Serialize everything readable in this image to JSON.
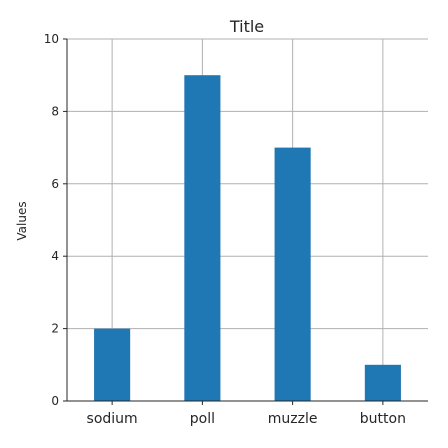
{
  "chart_data": {
    "type": "bar",
    "title": "Title",
    "xlabel": "",
    "ylabel": "Values",
    "categories": [
      "sodium",
      "poll",
      "muzzle",
      "button"
    ],
    "values": [
      2,
      9,
      7,
      1
    ],
    "ylim": [
      0,
      10
    ],
    "yticks": [
      0,
      2,
      4,
      6,
      8,
      10
    ],
    "grid": true,
    "bar_color": "#1f77b4",
    "grid_color": "#b0b0b0",
    "axis_color": "#262626"
  }
}
